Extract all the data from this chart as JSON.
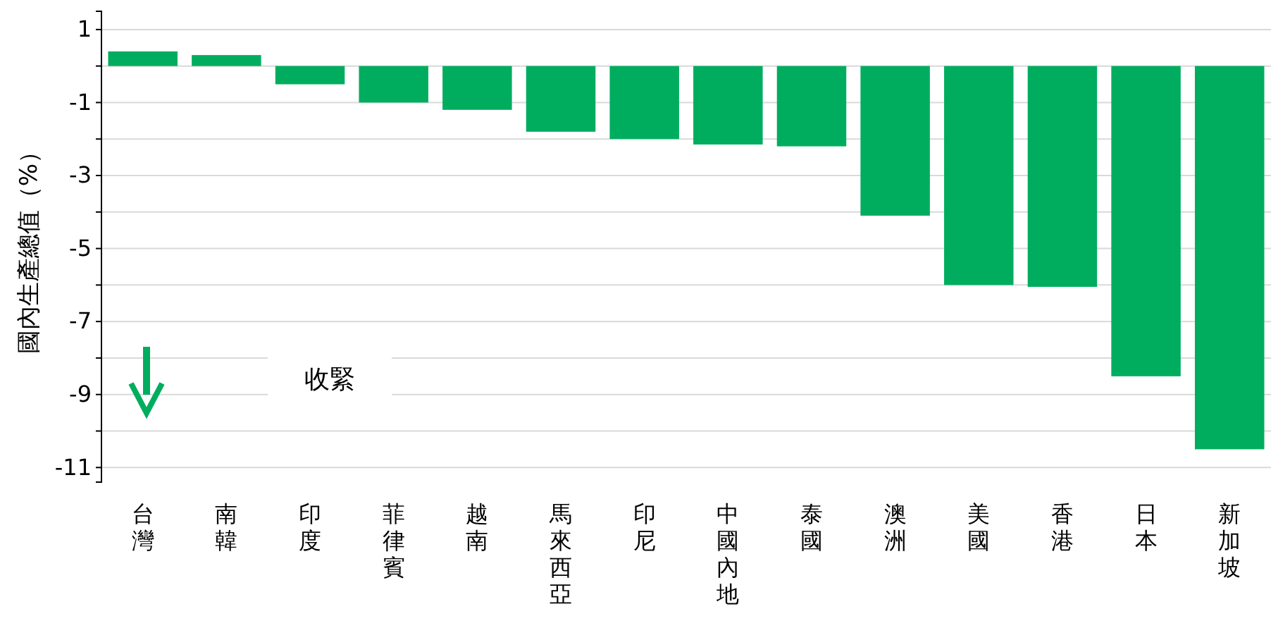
{
  "chart_data": {
    "type": "bar",
    "ylabel": "國內生產總值（%）",
    "categories": [
      "台灣",
      "南韓",
      "印度",
      "菲律賓",
      "越南",
      "馬來西亞",
      "印尼",
      "中國內地",
      "泰國",
      "澳洲",
      "美國",
      "香港",
      "日本",
      "新加坡"
    ],
    "values": [
      0.4,
      0.3,
      -0.5,
      -1.0,
      -1.2,
      -1.8,
      -2.0,
      -2.15,
      -2.2,
      -4.1,
      -6.0,
      -6.05,
      -8.5,
      -10.5
    ],
    "color": "#00ad5f",
    "ylim": [
      -11.4,
      1.5
    ],
    "yticks": [
      1,
      {
        "value": 0,
        "label": null
      },
      -1,
      {
        "value": -2,
        "label": null
      },
      -3,
      {
        "value": -4,
        "label": null
      },
      -5,
      {
        "value": -6,
        "label": null
      },
      -7,
      {
        "value": -8,
        "label": null
      },
      -9,
      {
        "value": -10,
        "label": null
      },
      -11
    ],
    "grid": "y",
    "annotations": [
      "收緊"
    ]
  }
}
